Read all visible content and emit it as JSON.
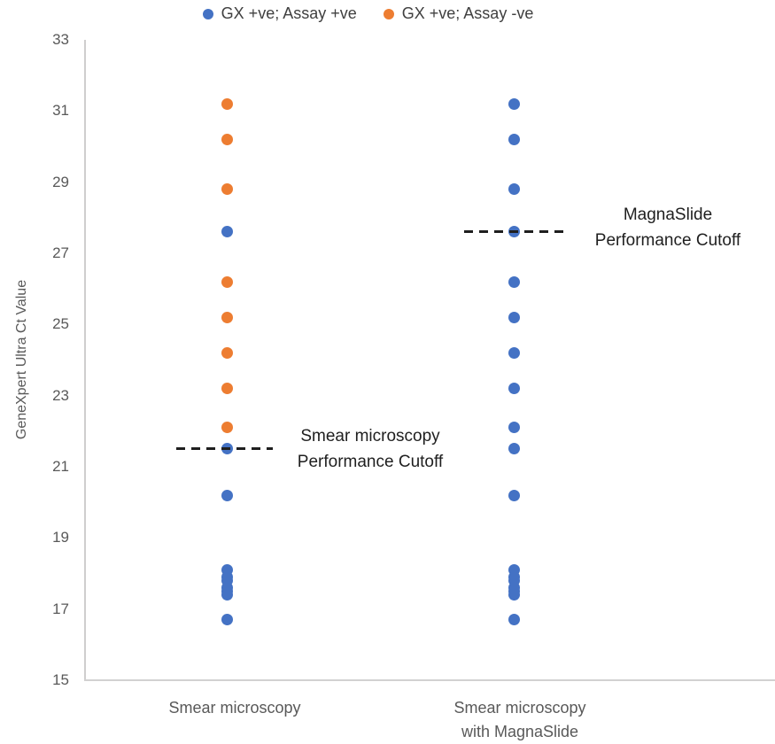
{
  "legend": {
    "items": [
      {
        "label": "GX +ve; Assay +ve",
        "color": "#4472C4"
      },
      {
        "label": "GX +ve; Assay -ve",
        "color": "#ED7D31"
      }
    ]
  },
  "y_axis": {
    "title": "GeneXpert Ultra Ct Value",
    "min": 15,
    "max": 33,
    "ticks": [
      33,
      31,
      29,
      27,
      25,
      23,
      21,
      19,
      17,
      15
    ]
  },
  "categories_display": [
    [
      "Smear microscopy"
    ],
    [
      "Smear microscopy",
      "with MagnaSlide"
    ]
  ],
  "annotations": [
    {
      "lines": [
        "Smear microscopy",
        "Performance Cutoff"
      ],
      "cutoff_ct": 21.5
    },
    {
      "lines": [
        "MagnaSlide",
        "Performance Cutoff"
      ],
      "cutoff_ct": 27.6
    }
  ],
  "chart_data": {
    "type": "scatter",
    "title": "",
    "xlabel": "",
    "ylabel": "GeneXpert Ultra Ct Value",
    "ylim": [
      15,
      33
    ],
    "ytick_step": 2,
    "grid": false,
    "legend_position": "top",
    "categories": [
      "Smear microscopy",
      "Smear microscopy with MagnaSlide"
    ],
    "series": [
      {
        "name": "GX +ve; Assay +ve",
        "color": "#4472C4",
        "values_by_category": [
          [
            27.6,
            21.5,
            20.2,
            18.1,
            17.9,
            17.8,
            17.6,
            17.5,
            17.4,
            16.7
          ],
          [
            31.2,
            30.2,
            28.8,
            27.6,
            26.2,
            25.2,
            24.2,
            23.2,
            22.1,
            21.5,
            20.2,
            18.1,
            17.9,
            17.8,
            17.6,
            17.5,
            17.4,
            16.7
          ]
        ]
      },
      {
        "name": "GX +ve; Assay -ve",
        "color": "#ED7D31",
        "values_by_category": [
          [
            31.2,
            30.2,
            28.8,
            26.2,
            25.2,
            24.2,
            23.2,
            22.1
          ],
          []
        ]
      }
    ],
    "cutoff_lines": [
      {
        "label": "Smear microscopy Performance Cutoff",
        "value": 21.5,
        "category_index": 0
      },
      {
        "label": "MagnaSlide Performance Cutoff",
        "value": 27.6,
        "category_index": 1
      }
    ]
  }
}
